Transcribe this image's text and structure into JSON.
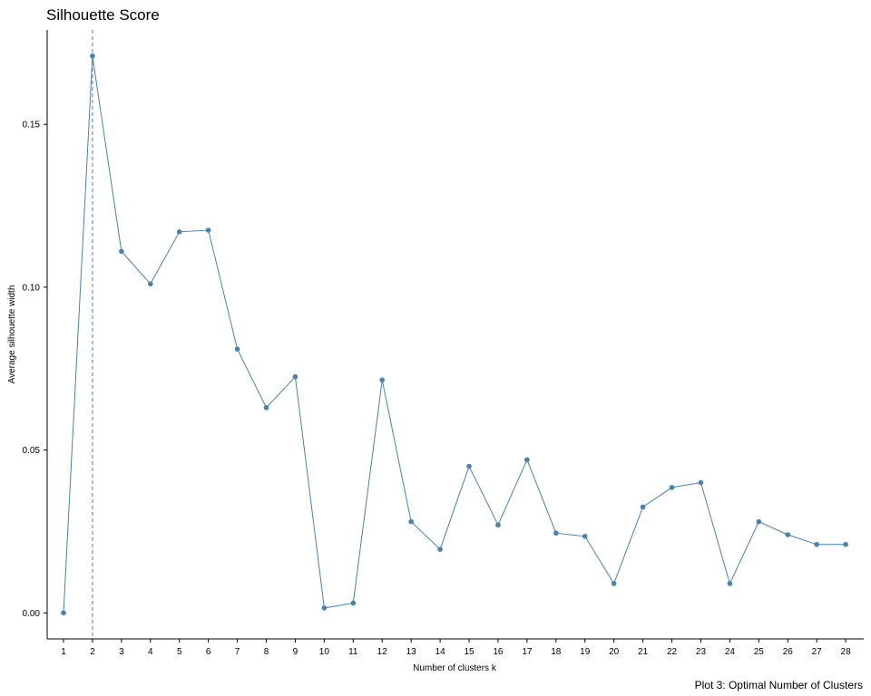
{
  "chart_data": {
    "type": "line",
    "title": "Silhouette Score",
    "xlabel": "Number of clusters k",
    "ylabel": "Average silhouette width",
    "caption": "Plot 3: Optimal Number of Clusters",
    "x": [
      1,
      2,
      3,
      4,
      5,
      6,
      7,
      8,
      9,
      10,
      11,
      12,
      13,
      14,
      15,
      16,
      17,
      18,
      19,
      20,
      21,
      22,
      23,
      24,
      25,
      26,
      27,
      28
    ],
    "y": [
      0.0,
      0.171,
      0.111,
      0.101,
      0.117,
      0.1175,
      0.081,
      0.063,
      0.0725,
      0.0015,
      0.003,
      0.0715,
      0.028,
      0.0195,
      0.045,
      0.027,
      0.047,
      0.0245,
      0.0235,
      0.009,
      0.0325,
      0.0385,
      0.04,
      0.009,
      0.028,
      0.024,
      0.021,
      0.021
    ],
    "y_ticks": [
      0.0,
      0.05,
      0.1,
      0.15
    ],
    "y_tick_labels": [
      "0.00",
      "0.05",
      "0.10",
      "0.15"
    ],
    "ylim": [
      -0.008,
      0.179
    ],
    "x_tick_labels": [
      "1",
      "2",
      "3",
      "4",
      "5",
      "6",
      "7",
      "8",
      "9",
      "10",
      "11",
      "12",
      "13",
      "14",
      "15",
      "16",
      "17",
      "18",
      "19",
      "20",
      "21",
      "22",
      "23",
      "24",
      "25",
      "26",
      "27",
      "28"
    ],
    "optimal_k": 2,
    "grid": false,
    "legend": "none",
    "line_color": "#4682B4",
    "point_color": "#4682B4"
  }
}
